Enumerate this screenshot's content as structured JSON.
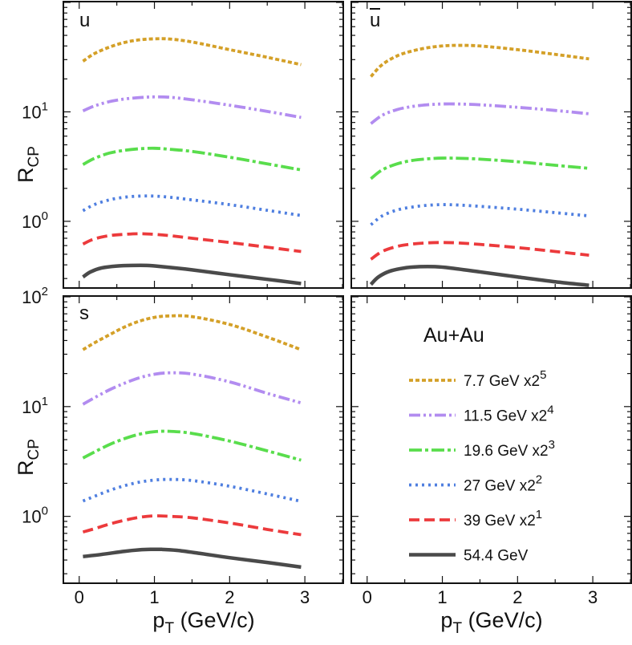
{
  "chart_data": {
    "type": "line",
    "y_scale": "log",
    "xlabel": "p_T (GeV/c)",
    "ylabel": "R_CP",
    "xlim": [
      -0.2,
      3.5
    ],
    "ylim": [
      0.25,
      100
    ],
    "x_ticks": [
      "0",
      "1",
      "2",
      "3"
    ],
    "y_ticks": [
      {
        "value": 1,
        "base": "10",
        "exp": "0"
      },
      {
        "value": 10,
        "base": "10",
        "exp": "1"
      },
      {
        "value": 100,
        "base": "10",
        "exp": "2"
      }
    ],
    "legend_title": "Au+Au",
    "legend_placement": "bottom-right panel",
    "series": [
      {
        "name": "7.7 GeV",
        "legend_main": "7.7 GeV x2",
        "legend_exp": "5",
        "color": "#d4a028",
        "dash": "5 3",
        "width": 3.8
      },
      {
        "name": "11.5 GeV",
        "legend_main": "11.5 GeV x2",
        "legend_exp": "4",
        "color": "#b28cf0",
        "dash": "14 4 3 4 3 4",
        "width": 3.8
      },
      {
        "name": "19.6 GeV",
        "legend_main": "19.6 GeV x2",
        "legend_exp": "3",
        "color": "#59dd4c",
        "dash": "16 4 4 4",
        "width": 3.8
      },
      {
        "name": "27 GeV",
        "legend_main": "27 GeV x2",
        "legend_exp": "2",
        "color": "#4f7fe0",
        "dash": "3 5",
        "width": 3.8
      },
      {
        "name": "39 GeV",
        "legend_main": "39 GeV x2",
        "legend_exp": "1",
        "color": "#ec3a3c",
        "dash": "13 6",
        "width": 3.8
      },
      {
        "name": "54.4 GeV",
        "legend_main": "54.4 GeV",
        "legend_exp": "",
        "color": "#4a4a4a",
        "dash": "",
        "width": 4.5
      }
    ],
    "panels": [
      {
        "label": "u",
        "label_overline": false,
        "curves": [
          {
            "x": [
              0.05,
              0.2,
              0.4,
              0.6,
              0.8,
              1.0,
              1.2,
              1.5,
              2.0,
              2.5,
              2.95
            ],
            "y": [
              29,
              34,
              39,
              43,
              45.5,
              46.5,
              46.3,
              43.5,
              37,
              31.5,
              27
            ]
          },
          {
            "x": [
              0.05,
              0.2,
              0.4,
              0.6,
              0.8,
              1.0,
              1.2,
              1.5,
              2.0,
              2.5,
              2.95
            ],
            "y": [
              10.2,
              11.3,
              12.4,
              13.1,
              13.5,
              13.7,
              13.6,
              12.9,
              11.5,
              10.1,
              8.9
            ]
          },
          {
            "x": [
              0.05,
              0.2,
              0.4,
              0.6,
              0.8,
              1.0,
              1.2,
              1.5,
              2.0,
              2.5,
              2.95
            ],
            "y": [
              3.3,
              3.75,
              4.2,
              4.45,
              4.6,
              4.65,
              4.55,
              4.35,
              3.85,
              3.35,
              2.95
            ]
          },
          {
            "x": [
              0.05,
              0.2,
              0.4,
              0.6,
              0.8,
              1.0,
              1.2,
              1.5,
              2.0,
              2.5,
              2.95
            ],
            "y": [
              1.25,
              1.42,
              1.57,
              1.66,
              1.7,
              1.7,
              1.66,
              1.57,
              1.42,
              1.26,
              1.13
            ]
          },
          {
            "x": [
              0.05,
              0.2,
              0.4,
              0.6,
              0.8,
              1.0,
              1.2,
              1.5,
              2.0,
              2.5,
              2.95
            ],
            "y": [
              0.62,
              0.69,
              0.74,
              0.76,
              0.77,
              0.76,
              0.74,
              0.7,
              0.64,
              0.58,
              0.53
            ]
          },
          {
            "x": [
              0.05,
              0.15,
              0.3,
              0.5,
              0.7,
              0.9,
              1.1,
              1.5,
              2.0,
              2.5,
              2.95
            ],
            "y": [
              0.31,
              0.345,
              0.375,
              0.39,
              0.395,
              0.395,
              0.385,
              0.36,
              0.325,
              0.295,
              0.27
            ]
          }
        ]
      },
      {
        "label": "u",
        "label_overline": true,
        "curves": [
          {
            "x": [
              0.05,
              0.2,
              0.4,
              0.6,
              0.8,
              1.0,
              1.2,
              1.5,
              2.0,
              2.5,
              2.95
            ],
            "y": [
              21,
              27,
              32.5,
              36,
              38.5,
              40,
              40.5,
              40,
              37,
              33.5,
              30.5
            ]
          },
          {
            "x": [
              0.05,
              0.2,
              0.4,
              0.6,
              0.8,
              1.0,
              1.2,
              1.5,
              2.0,
              2.5,
              2.95
            ],
            "y": [
              7.8,
              9.3,
              10.5,
              11.2,
              11.6,
              11.8,
              11.8,
              11.6,
              11.0,
              10.3,
              9.6
            ]
          },
          {
            "x": [
              0.05,
              0.2,
              0.4,
              0.6,
              0.8,
              1.0,
              1.2,
              1.5,
              2.0,
              2.5,
              2.95
            ],
            "y": [
              2.45,
              2.95,
              3.35,
              3.6,
              3.72,
              3.78,
              3.77,
              3.7,
              3.5,
              3.25,
              3.05
            ]
          },
          {
            "x": [
              0.05,
              0.2,
              0.4,
              0.6,
              0.8,
              1.0,
              1.2,
              1.5,
              2.0,
              2.5,
              2.95
            ],
            "y": [
              0.93,
              1.12,
              1.27,
              1.35,
              1.4,
              1.42,
              1.41,
              1.37,
              1.29,
              1.2,
              1.12
            ]
          },
          {
            "x": [
              0.05,
              0.2,
              0.4,
              0.6,
              0.8,
              1.0,
              1.2,
              1.5,
              2.0,
              2.5,
              2.95
            ],
            "y": [
              0.45,
              0.53,
              0.59,
              0.62,
              0.635,
              0.64,
              0.635,
              0.615,
              0.575,
              0.53,
              0.49
            ]
          },
          {
            "x": [
              0.05,
              0.15,
              0.3,
              0.5,
              0.7,
              0.9,
              1.1,
              1.5,
              2.0,
              2.5,
              2.95
            ],
            "y": [
              0.265,
              0.31,
              0.35,
              0.375,
              0.385,
              0.385,
              0.375,
              0.345,
              0.31,
              0.28,
              0.26
            ]
          }
        ]
      },
      {
        "label": "s",
        "label_overline": false,
        "curves": [
          {
            "x": [
              0.05,
              0.2,
              0.4,
              0.6,
              0.8,
              1.0,
              1.2,
              1.5,
              2.0,
              2.5,
              2.95
            ],
            "y": [
              33,
              38,
              45,
              53,
              60,
              65,
              67,
              66,
              56,
              43,
              33
            ]
          },
          {
            "x": [
              0.05,
              0.2,
              0.4,
              0.6,
              0.8,
              1.0,
              1.2,
              1.5,
              2.0,
              2.5,
              2.95
            ],
            "y": [
              10.5,
              12,
              14.2,
              16.3,
              18.3,
              19.7,
              20.3,
              19.8,
              16.8,
              13.2,
              10.8
            ]
          },
          {
            "x": [
              0.05,
              0.2,
              0.4,
              0.6,
              0.8,
              1.0,
              1.2,
              1.5,
              2.0,
              2.5,
              2.95
            ],
            "y": [
              3.4,
              3.85,
              4.5,
              5.1,
              5.6,
              5.9,
              5.95,
              5.7,
              4.85,
              3.95,
              3.25
            ]
          },
          {
            "x": [
              0.05,
              0.2,
              0.4,
              0.6,
              0.8,
              1.0,
              1.2,
              1.5,
              2.0,
              2.5,
              2.95
            ],
            "y": [
              1.38,
              1.52,
              1.72,
              1.9,
              2.05,
              2.14,
              2.17,
              2.12,
              1.88,
              1.6,
              1.37
            ]
          },
          {
            "x": [
              0.05,
              0.2,
              0.4,
              0.6,
              0.8,
              1.0,
              1.2,
              1.5,
              2.0,
              2.5,
              2.95
            ],
            "y": [
              0.72,
              0.77,
              0.85,
              0.92,
              0.98,
              1.01,
              1.0,
              0.97,
              0.87,
              0.76,
              0.68
            ]
          },
          {
            "x": [
              0.05,
              0.3,
              0.6,
              0.8,
              0.95,
              1.1,
              1.3,
              1.6,
              2.0,
              2.5,
              2.95
            ],
            "y": [
              0.43,
              0.45,
              0.48,
              0.495,
              0.5,
              0.5,
              0.49,
              0.46,
              0.42,
              0.38,
              0.345
            ]
          }
        ]
      }
    ]
  }
}
